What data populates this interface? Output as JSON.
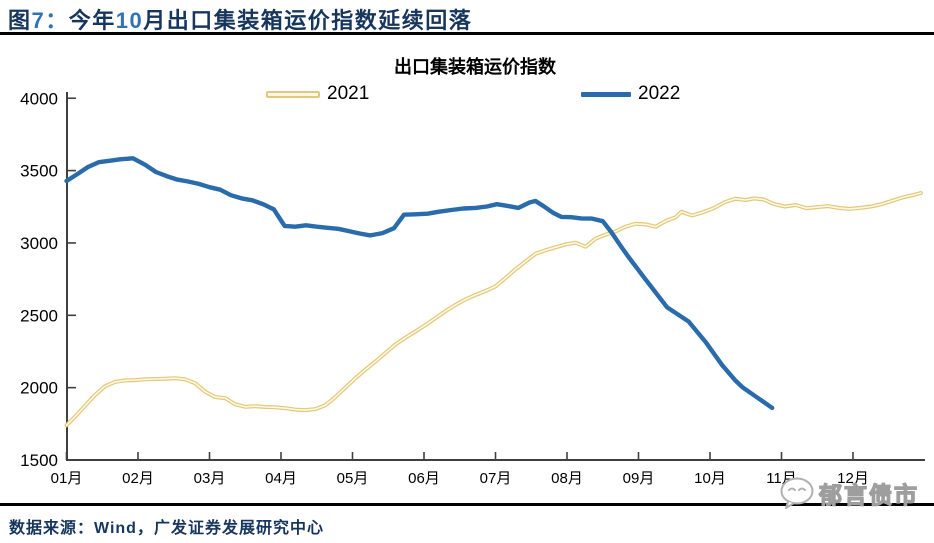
{
  "header": {
    "title_segments": [
      {
        "text": "图",
        "color": "#17365d"
      },
      {
        "text": "7：",
        "color": "#2e74b5"
      },
      {
        "text": "今年",
        "color": "#17365d"
      },
      {
        "text": "10",
        "color": "#2e74b5"
      },
      {
        "text": "月出口集装箱运价指数延续回落",
        "color": "#17365d"
      }
    ],
    "title_plain": "图7：今年10月出口集装箱运价指数延续回落"
  },
  "chart_data": {
    "type": "line",
    "title": "出口集装箱运价指数",
    "x_unit": "month_fraction (1.0 = early January, weekly index readings)",
    "x_ticks": [
      "01月",
      "02月",
      "03月",
      "04月",
      "05月",
      "06月",
      "07月",
      "08月",
      "09月",
      "10月",
      "11月",
      "12月"
    ],
    "y_ticks": [
      1500,
      2000,
      2500,
      3000,
      3500,
      4000
    ],
    "ylim": [
      1500,
      4000
    ],
    "xlim_months": [
      1,
      13
    ],
    "grid": false,
    "legend_position": "top",
    "axis_color": "#404040",
    "series": [
      {
        "name": "2021",
        "color": "#e2c878",
        "inner_color": "#fdf8e7",
        "style": "hollow-double-line",
        "points": [
          [
            1.0,
            1740
          ],
          [
            1.12,
            1800
          ],
          [
            1.26,
            1875
          ],
          [
            1.4,
            1950
          ],
          [
            1.54,
            2010
          ],
          [
            1.68,
            2040
          ],
          [
            1.82,
            2050
          ],
          [
            1.96,
            2052
          ],
          [
            2.1,
            2058
          ],
          [
            2.24,
            2060
          ],
          [
            2.38,
            2062
          ],
          [
            2.52,
            2065
          ],
          [
            2.66,
            2058
          ],
          [
            2.8,
            2030
          ],
          [
            2.94,
            1972
          ],
          [
            3.08,
            1935
          ],
          [
            3.22,
            1928
          ],
          [
            3.36,
            1885
          ],
          [
            3.5,
            1868
          ],
          [
            3.64,
            1872
          ],
          [
            3.78,
            1866
          ],
          [
            3.92,
            1864
          ],
          [
            4.06,
            1858
          ],
          [
            4.2,
            1848
          ],
          [
            4.34,
            1845
          ],
          [
            4.48,
            1852
          ],
          [
            4.62,
            1878
          ],
          [
            4.76,
            1935
          ],
          [
            4.9,
            2000
          ],
          [
            5.04,
            2065
          ],
          [
            5.18,
            2125
          ],
          [
            5.32,
            2180
          ],
          [
            5.46,
            2240
          ],
          [
            5.6,
            2298
          ],
          [
            5.74,
            2345
          ],
          [
            5.88,
            2388
          ],
          [
            6.02,
            2432
          ],
          [
            6.16,
            2480
          ],
          [
            6.3,
            2528
          ],
          [
            6.44,
            2572
          ],
          [
            6.58,
            2610
          ],
          [
            6.72,
            2640
          ],
          [
            6.86,
            2668
          ],
          [
            7.0,
            2700
          ],
          [
            7.14,
            2758
          ],
          [
            7.28,
            2818
          ],
          [
            7.42,
            2872
          ],
          [
            7.56,
            2925
          ],
          [
            7.7,
            2950
          ],
          [
            7.84,
            2970
          ],
          [
            7.98,
            2990
          ],
          [
            8.12,
            3002
          ],
          [
            8.26,
            2974
          ],
          [
            8.4,
            3030
          ],
          [
            8.54,
            3058
          ],
          [
            8.68,
            3080
          ],
          [
            8.82,
            3112
          ],
          [
            8.96,
            3132
          ],
          [
            9.1,
            3128
          ],
          [
            9.24,
            3112
          ],
          [
            9.38,
            3152
          ],
          [
            9.52,
            3178
          ],
          [
            9.6,
            3215
          ],
          [
            9.75,
            3190
          ],
          [
            9.9,
            3212
          ],
          [
            10.05,
            3240
          ],
          [
            10.2,
            3280
          ],
          [
            10.35,
            3305
          ],
          [
            10.5,
            3297
          ],
          [
            10.62,
            3308
          ],
          [
            10.75,
            3300
          ],
          [
            10.9,
            3268
          ],
          [
            11.05,
            3252
          ],
          [
            11.2,
            3262
          ],
          [
            11.35,
            3240
          ],
          [
            11.5,
            3248
          ],
          [
            11.65,
            3255
          ],
          [
            11.8,
            3242
          ],
          [
            11.95,
            3235
          ],
          [
            12.1,
            3242
          ],
          [
            12.25,
            3252
          ],
          [
            12.4,
            3268
          ],
          [
            12.55,
            3292
          ],
          [
            12.7,
            3315
          ],
          [
            12.85,
            3332
          ],
          [
            12.95,
            3345
          ]
        ]
      },
      {
        "name": "2022",
        "color": "#2a6cab",
        "style": "solid-line",
        "points": [
          [
            1.0,
            3428
          ],
          [
            1.15,
            3475
          ],
          [
            1.3,
            3525
          ],
          [
            1.45,
            3558
          ],
          [
            1.6,
            3568
          ],
          [
            1.75,
            3578
          ],
          [
            1.93,
            3585
          ],
          [
            2.1,
            3540
          ],
          [
            2.25,
            3490
          ],
          [
            2.4,
            3462
          ],
          [
            2.55,
            3438
          ],
          [
            2.7,
            3425
          ],
          [
            2.85,
            3408
          ],
          [
            3.0,
            3385
          ],
          [
            3.15,
            3368
          ],
          [
            3.3,
            3330
          ],
          [
            3.45,
            3308
          ],
          [
            3.6,
            3295
          ],
          [
            3.75,
            3268
          ],
          [
            3.9,
            3232
          ],
          [
            4.05,
            3118
          ],
          [
            4.2,
            3112
          ],
          [
            4.35,
            3122
          ],
          [
            4.5,
            3112
          ],
          [
            4.65,
            3105
          ],
          [
            4.8,
            3098
          ],
          [
            4.95,
            3082
          ],
          [
            5.1,
            3065
          ],
          [
            5.25,
            3052
          ],
          [
            5.42,
            3068
          ],
          [
            5.58,
            3102
          ],
          [
            5.72,
            3195
          ],
          [
            5.88,
            3198
          ],
          [
            6.05,
            3202
          ],
          [
            6.2,
            3215
          ],
          [
            6.38,
            3228
          ],
          [
            6.55,
            3238
          ],
          [
            6.72,
            3242
          ],
          [
            6.88,
            3252
          ],
          [
            7.02,
            3268
          ],
          [
            7.18,
            3255
          ],
          [
            7.32,
            3242
          ],
          [
            7.48,
            3280
          ],
          [
            7.56,
            3290
          ],
          [
            7.68,
            3252
          ],
          [
            7.8,
            3210
          ],
          [
            7.92,
            3180
          ],
          [
            8.06,
            3178
          ],
          [
            8.2,
            3170
          ],
          [
            8.35,
            3168
          ],
          [
            8.5,
            3150
          ],
          [
            8.62,
            3075
          ],
          [
            8.75,
            2980
          ],
          [
            8.85,
            2910
          ],
          [
            9.08,
            2760
          ],
          [
            9.4,
            2555
          ],
          [
            9.7,
            2458
          ],
          [
            9.94,
            2315
          ],
          [
            10.17,
            2155
          ],
          [
            10.35,
            2052
          ],
          [
            10.46,
            2000
          ],
          [
            10.66,
            1932
          ],
          [
            10.87,
            1860
          ]
        ]
      }
    ]
  },
  "footer": {
    "source": "数据来源：Wind，广发证券发展研究中心",
    "watermark": "郁言债市",
    "watermark_color": "#9e9e9e"
  },
  "colors": {
    "title_navy": "#17365d",
    "digit_blue": "#2e74b5",
    "line_2021": "#e2c878",
    "line_2021_inner": "#fdf8e7",
    "line_2022": "#2a6cab",
    "axis": "#404040"
  }
}
